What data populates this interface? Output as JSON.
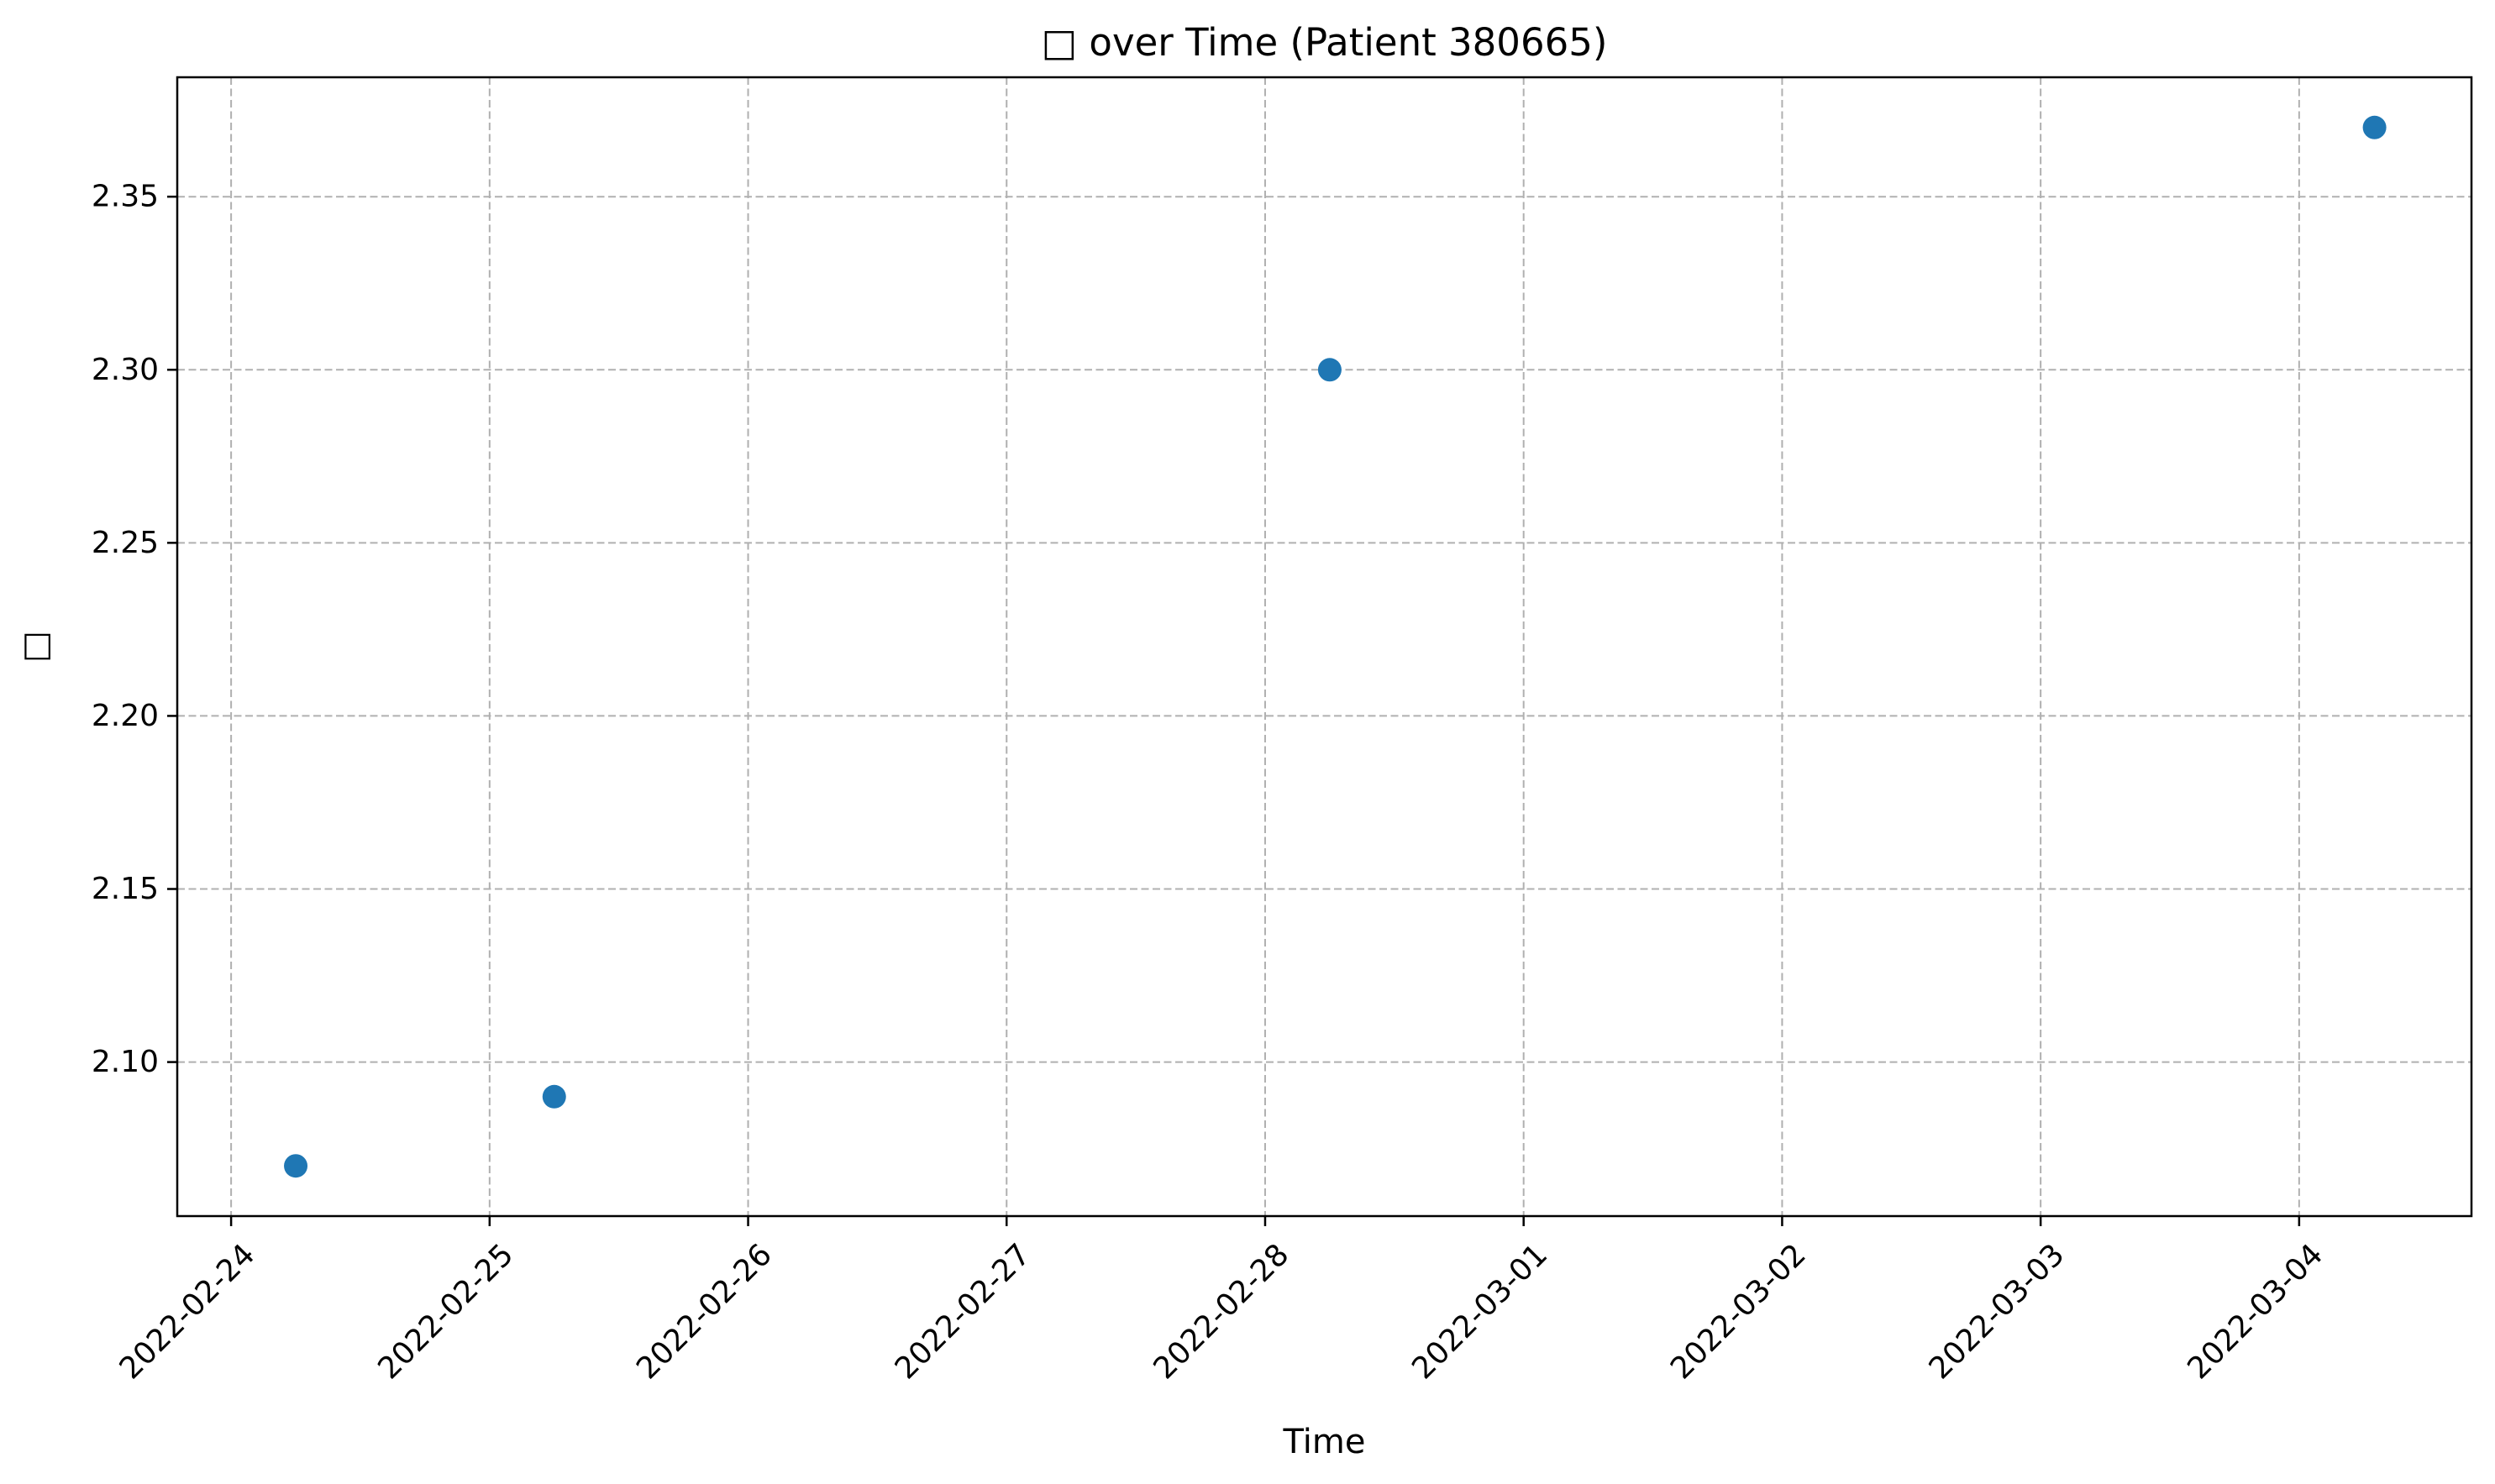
{
  "chart_data": {
    "type": "scatter",
    "title": "□ over Time (Patient 380665)",
    "xlabel": "Time",
    "ylabel": "□",
    "x_ticks": [
      "2022-02-24",
      "2022-02-25",
      "2022-02-26",
      "2022-02-27",
      "2022-02-28",
      "2022-03-01",
      "2022-03-02",
      "2022-03-03",
      "2022-03-04"
    ],
    "y_ticks": [
      "2.10",
      "2.15",
      "2.20",
      "2.25",
      "2.30",
      "2.35"
    ],
    "xlim": [
      "2022-02-23 19:00",
      "2022-03-04 16:00"
    ],
    "ylim": [
      2.0555,
      2.3845
    ],
    "grid": true,
    "colors": {
      "marker": "#1f77b4",
      "grid": "#b0b0b0"
    },
    "series": [
      {
        "points": [
          {
            "x": "2022-02-24 06:00",
            "y": 2.07
          },
          {
            "x": "2022-02-25 06:00",
            "y": 2.09
          },
          {
            "x": "2022-02-28 06:00",
            "y": 2.3
          },
          {
            "x": "2022-03-04 07:00",
            "y": 2.37
          }
        ]
      }
    ]
  }
}
